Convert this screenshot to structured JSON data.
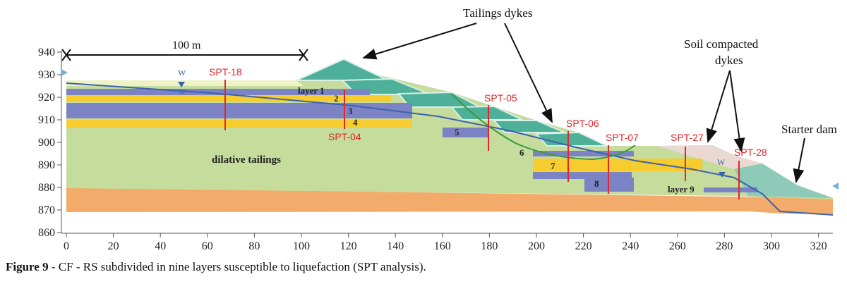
{
  "figure": {
    "x_axis_ticks": [
      "0",
      "20",
      "40",
      "60",
      "80",
      "100",
      "120",
      "140",
      "160",
      "180",
      "200",
      "220",
      "240",
      "260",
      "280",
      "300",
      "320"
    ],
    "y_axis_ticks": [
      "940",
      "930",
      "920",
      "910",
      "900",
      "890",
      "880",
      "870",
      "860"
    ],
    "scale_bar_label": "100 m",
    "water_table_symbol": "W",
    "annotations": {
      "tailings_dykes": "Tailings dykes",
      "soil_compacted_line1": "Soil compacted",
      "soil_compacted_line2": "dykes",
      "starter_dam": "Starter dam",
      "dilative_tailings": "dilative tailings"
    },
    "layers": {
      "l1": "layer 1",
      "l2": "2",
      "l3": "3",
      "l4": "4",
      "l5": "5",
      "l6": "6",
      "l7": "7",
      "l8": "8",
      "l9": "layer 9"
    },
    "spt_tests": {
      "spt18": "SPT-18",
      "spt04": "SPT-04",
      "spt05": "SPT-05",
      "spt06": "SPT-06",
      "spt07": "SPT-07",
      "spt27": "SPT-27",
      "spt28": "SPT-28"
    },
    "colors": {
      "tailings": "#c5dc9c",
      "foundation": "#f2ab6a",
      "liquefiable_blue": "#7b83c4",
      "liquefiable_yellow": "#f6cc2e",
      "dyke_teal": "#4fb09a",
      "soil_dyke": "#ead8d2",
      "starter_dam": "#8ecab8",
      "spt_red": "#e2262b",
      "water_table": "#3a62b0",
      "failure_surface": "#3b9a3b"
    }
  },
  "caption": {
    "label": "Figure 9",
    "text": " - CF - RS subdivided in nine layers susceptible to liquefaction (SPT analysis)."
  }
}
